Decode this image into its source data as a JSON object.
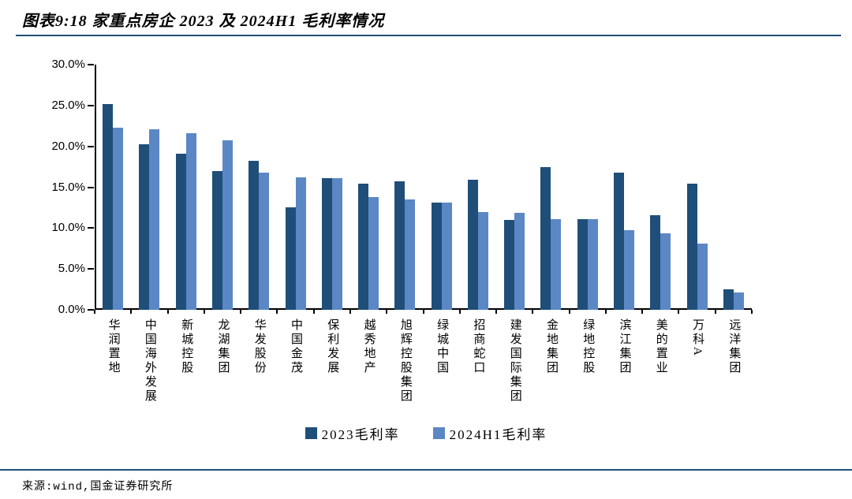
{
  "page": {
    "title": "图表9:18 家重点房企 2023 及 2024H1 毛利率情况",
    "source": "来源:wind,国金证券研究所"
  },
  "chart_data": {
    "type": "bar",
    "title": "18 家重点房企 2023 及 2024H1 毛利率情况",
    "categories": [
      "华润置地",
      "中国海外发展",
      "新城控股",
      "龙湖集团",
      "华发股份",
      "中国金茂",
      "保利发展",
      "越秀地产",
      "旭辉控股集团",
      "绿城中国",
      "招商蛇口",
      "建发国际集团",
      "金地集团",
      "绿地控股",
      "滨江集团",
      "美的置业",
      "万科A",
      "远洋集团"
    ],
    "series": [
      {
        "name": "2023毛利率",
        "color": "#1F4E79",
        "values": [
          25.2,
          20.3,
          19.1,
          17.0,
          18.2,
          12.5,
          16.1,
          15.4,
          15.7,
          13.1,
          15.9,
          11.0,
          17.5,
          11.1,
          16.8,
          11.6,
          15.4,
          2.5
        ]
      },
      {
        "name": "2024H1毛利率",
        "color": "#5B87C5",
        "values": [
          22.3,
          22.1,
          21.6,
          20.7,
          16.8,
          16.2,
          16.1,
          13.8,
          13.5,
          13.1,
          12.0,
          11.9,
          11.1,
          11.1,
          9.7,
          9.4,
          8.1,
          2.1
        ]
      }
    ],
    "xlabel": "",
    "ylabel": "",
    "ylim": [
      0,
      30
    ],
    "ytick_step": 5,
    "ytick_labels": [
      "0.0%",
      "5.0%",
      "10.0%",
      "15.0%",
      "20.0%",
      "25.0%",
      "30.0%"
    ],
    "grid": false,
    "legend_position": "bottom"
  }
}
